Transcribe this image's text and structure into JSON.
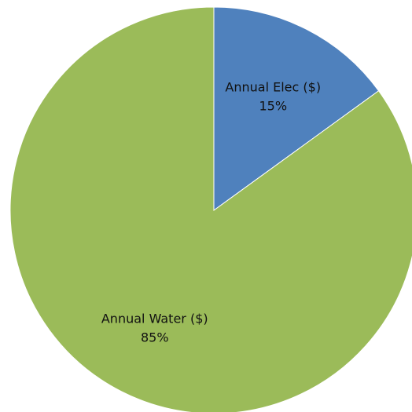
{
  "chart_data": {
    "type": "pie",
    "title": "",
    "legend": "none",
    "slices": [
      {
        "label": "Annual Elec ($)",
        "value": 15,
        "percent_label": "15%",
        "color": "#4F81BD"
      },
      {
        "label": "Annual Water ($)",
        "value": 85,
        "percent_label": "85%",
        "color": "#9BBB59"
      }
    ]
  }
}
